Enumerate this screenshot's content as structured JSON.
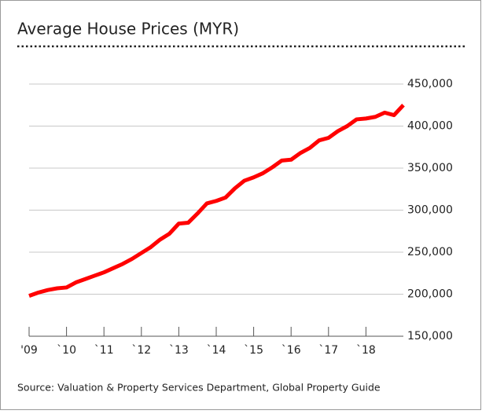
{
  "chart_data": {
    "type": "line",
    "title": "Average House Prices (MYR)",
    "source": "Source: Valuation & Property Services Department, Global Property Guide",
    "x": [
      2009,
      2009.25,
      2009.5,
      2009.75,
      2010,
      2010.25,
      2010.5,
      2010.75,
      2011,
      2011.25,
      2011.5,
      2011.75,
      2012,
      2012.25,
      2012.5,
      2012.75,
      2013,
      2013.25,
      2013.5,
      2013.75,
      2014,
      2014.25,
      2014.5,
      2014.75,
      2015,
      2015.25,
      2015.5,
      2015.75,
      2016,
      2016.25,
      2016.5,
      2016.75,
      2017,
      2017.25,
      2017.5,
      2017.75,
      2018,
      2018.25,
      2018.5,
      2018.75,
      2019
    ],
    "series": [
      {
        "color": "#ff0000",
        "values": [
          198000,
          202000,
          205000,
          207000,
          208000,
          214000,
          218000,
          222000,
          226000,
          231000,
          236000,
          242000,
          249000,
          256000,
          265000,
          272000,
          284000,
          285000,
          296000,
          308000,
          311000,
          315000,
          326000,
          335000,
          339000,
          344000,
          351000,
          359000,
          360000,
          368000,
          374000,
          383000,
          386000,
          394000,
          400000,
          408000,
          409000,
          411000,
          416000,
          413000,
          425000
        ]
      }
    ],
    "xlim": [
      2009,
      2019
    ],
    "xticks": [
      {
        "value": 2009,
        "label": "'09"
      },
      {
        "value": 2010,
        "label": "`10"
      },
      {
        "value": 2011,
        "label": "`11"
      },
      {
        "value": 2012,
        "label": "`12"
      },
      {
        "value": 2013,
        "label": "`13"
      },
      {
        "value": 2014,
        "label": "`14"
      },
      {
        "value": 2015,
        "label": "`15"
      },
      {
        "value": 2016,
        "label": "`16"
      },
      {
        "value": 2017,
        "label": "`17"
      },
      {
        "value": 2018,
        "label": "`18"
      }
    ],
    "ylim": [
      150000,
      450000
    ],
    "yticks": [
      {
        "value": 150000,
        "label": "150,000"
      },
      {
        "value": 200000,
        "label": "200,000"
      },
      {
        "value": 250000,
        "label": "250,000"
      },
      {
        "value": 300000,
        "label": "300,000"
      },
      {
        "value": 350000,
        "label": "350,000"
      },
      {
        "value": 400000,
        "label": "400,000"
      },
      {
        "value": 450000,
        "label": "450,000"
      }
    ],
    "grid": true
  }
}
